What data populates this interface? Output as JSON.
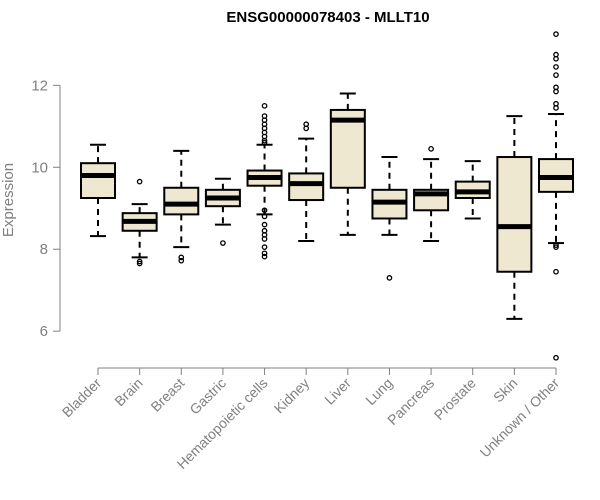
{
  "chart_data": {
    "type": "boxplot",
    "title": "ENSG00000078403 - MLLT10",
    "ylabel": "Expression",
    "xlabel": "",
    "ylim": [
      5.1,
      13.4
    ],
    "yticks": [
      6,
      8,
      10,
      12
    ],
    "grid": false,
    "colors": {
      "box_fill": "#EEE8D0",
      "box_stroke": "#000000",
      "axis": "#808080"
    },
    "categories": [
      "Bladder",
      "Brain",
      "Breast",
      "Gastric",
      "Hematopoietic cells",
      "Kidney",
      "Liver",
      "Lung",
      "Pancreas",
      "Prostate",
      "Skin",
      "Unknown / Other"
    ],
    "boxes": [
      {
        "category": "Bladder",
        "whisker_low": 8.32,
        "q1": 9.25,
        "median": 9.8,
        "q3": 10.1,
        "whisker_high": 10.55,
        "outliers": []
      },
      {
        "category": "Brain",
        "whisker_low": 7.8,
        "q1": 8.45,
        "median": 8.68,
        "q3": 8.88,
        "whisker_high": 9.1,
        "outliers": [
          9.65,
          7.7,
          7.65
        ]
      },
      {
        "category": "Breast",
        "whisker_low": 8.05,
        "q1": 8.85,
        "median": 9.1,
        "q3": 9.5,
        "whisker_high": 10.4,
        "outliers": [
          7.8,
          7.72
        ]
      },
      {
        "category": "Gastric",
        "whisker_low": 8.6,
        "q1": 9.05,
        "median": 9.25,
        "q3": 9.45,
        "whisker_high": 9.72,
        "outliers": [
          8.15
        ]
      },
      {
        "category": "Hematopoietic cells",
        "whisker_low": 8.85,
        "q1": 9.55,
        "median": 9.75,
        "q3": 9.92,
        "whisker_high": 10.55,
        "outliers": [
          11.5,
          11.25,
          11.15,
          11.05,
          10.95,
          10.85,
          10.75,
          10.65,
          10.6,
          8.95,
          8.8,
          8.6,
          8.45,
          8.35,
          8.25,
          8.05,
          7.9,
          7.82
        ]
      },
      {
        "category": "Kidney",
        "whisker_low": 8.2,
        "q1": 9.2,
        "median": 9.6,
        "q3": 9.85,
        "whisker_high": 10.7,
        "outliers": [
          11.05,
          10.95
        ]
      },
      {
        "category": "Liver",
        "whisker_low": 8.35,
        "q1": 9.5,
        "median": 11.15,
        "q3": 11.4,
        "whisker_high": 11.8,
        "outliers": []
      },
      {
        "category": "Lung",
        "whisker_low": 8.35,
        "q1": 8.75,
        "median": 9.15,
        "q3": 9.45,
        "whisker_high": 10.25,
        "outliers": [
          7.3
        ]
      },
      {
        "category": "Pancreas",
        "whisker_low": 8.2,
        "q1": 8.95,
        "median": 9.35,
        "q3": 9.45,
        "whisker_high": 10.2,
        "outliers": [
          10.45
        ]
      },
      {
        "category": "Prostate",
        "whisker_low": 8.75,
        "q1": 9.25,
        "median": 9.4,
        "q3": 9.65,
        "whisker_high": 10.15,
        "outliers": []
      },
      {
        "category": "Skin",
        "whisker_low": 6.3,
        "q1": 7.45,
        "median": 8.55,
        "q3": 10.25,
        "whisker_high": 11.25,
        "outliers": []
      },
      {
        "category": "Unknown / Other",
        "whisker_low": 8.15,
        "q1": 9.4,
        "median": 9.75,
        "q3": 10.2,
        "whisker_high": 11.3,
        "outliers": [
          13.25,
          12.75,
          12.65,
          12.45,
          12.25,
          11.95,
          11.85,
          11.55,
          11.45,
          8.1,
          8.05,
          7.45,
          5.35
        ]
      }
    ]
  }
}
